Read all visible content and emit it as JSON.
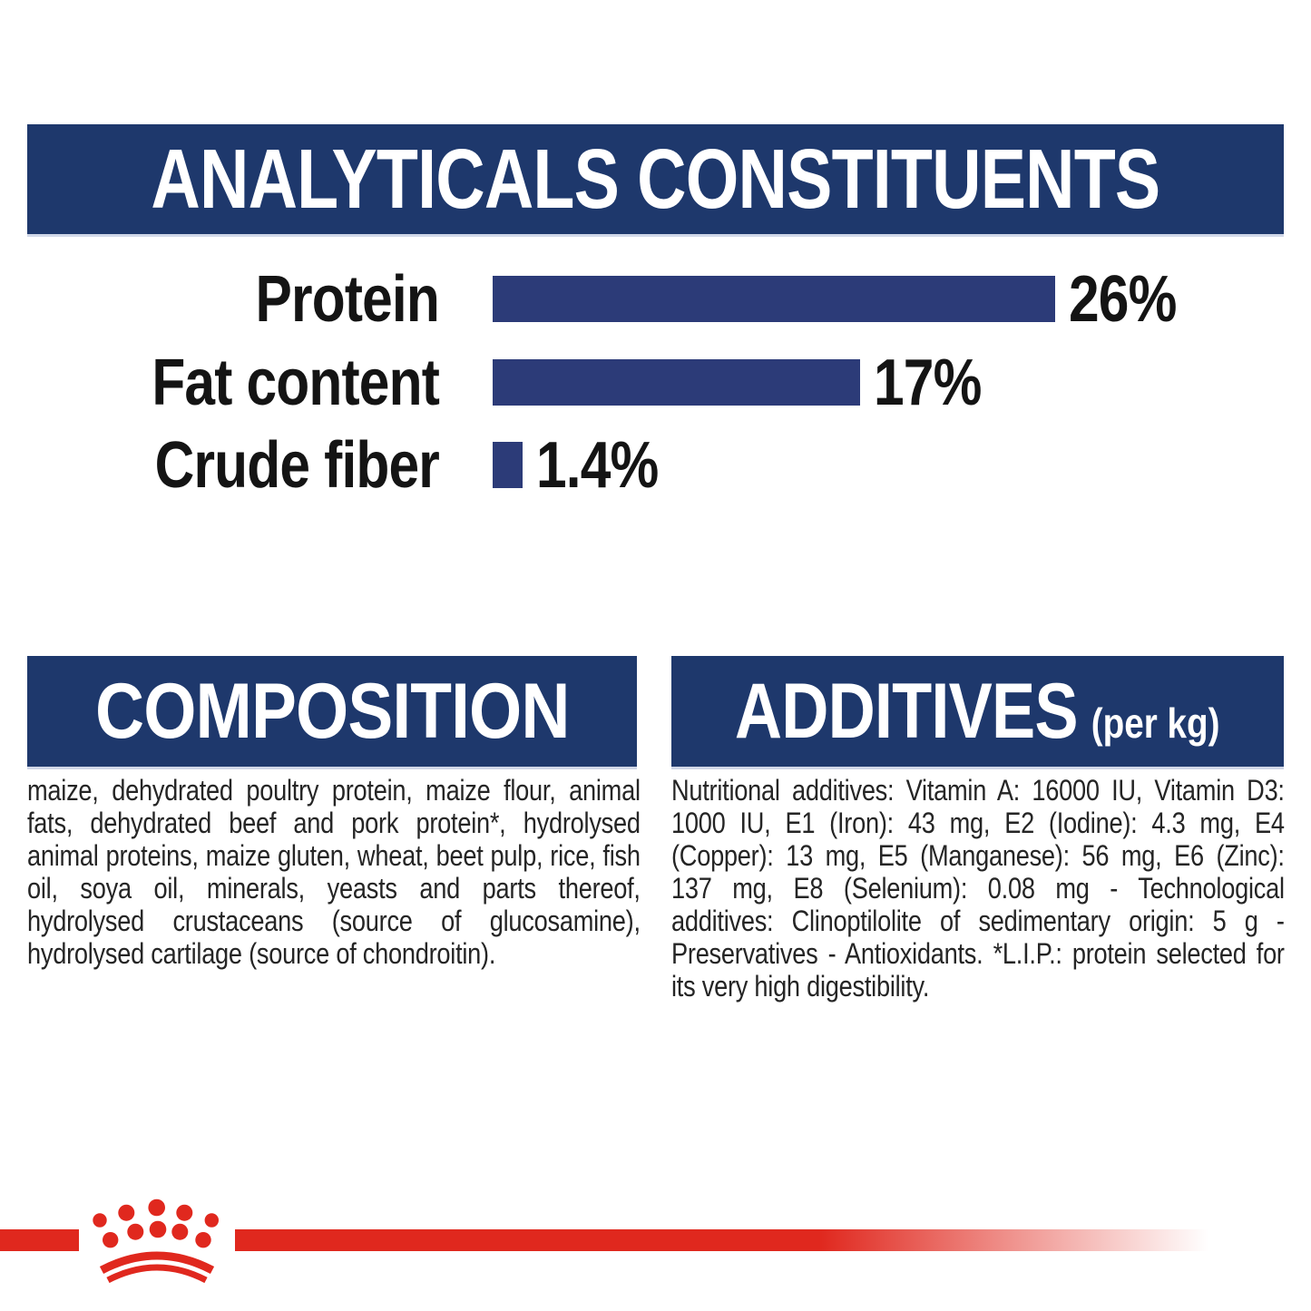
{
  "title_banner": {
    "label": "ANALYTICALS CONSTITUENTS"
  },
  "chart_data": {
    "type": "bar",
    "orientation": "horizontal",
    "title": "ANALYTICALS CONSTITUENTS",
    "categories": [
      "Protein",
      "Fat content",
      "Crude fiber"
    ],
    "values": [
      26,
      17,
      1.4
    ],
    "value_labels": [
      "26%",
      "17%",
      "1.4%"
    ],
    "unit": "percent",
    "xlim": [
      0,
      26
    ],
    "grid": false,
    "bar_color": "#2c3b78",
    "label_position": "left-of-bar",
    "value_label_position": "right-of-bar"
  },
  "composition": {
    "title": "COMPOSITION",
    "body": "maize, dehydrated poultry protein, maize flour, animal fats, dehydrated beef and pork protein*, hydrolysed animal proteins, maize gluten, wheat, beet pulp, rice, fish oil, soya oil, minerals, yeasts and parts thereof, hydrolysed crustaceans (source of glucosamine), hydrolysed cartilage (source of chondroitin)."
  },
  "additives": {
    "title": "ADDITIVES",
    "title_suffix": "(per kg)",
    "body": "Nutritional additives: Vitamin A: 16000 IU, Vitamin D3: 1000 IU, E1 (Iron): 43 mg, E2 (Iodine): 4.3 mg, E4 (Copper): 13 mg, E5 (Manganese): 56 mg, E6 (Zinc): 137 mg, E8 (Selenium): 0.08 mg - Technological additives: Clinoptilolite of sedimentary origin: 5 g - Preservatives - Antioxidants. *L.I.P.: protein selected for its very high digestibility."
  },
  "footer": {
    "logo_icon": "royal-canin-crown-paw-logo",
    "stripe_color": "#e0281e"
  },
  "colors": {
    "banner_navy": "#1e386c",
    "bar_navy": "#2c3b78",
    "brand_red": "#e0281e",
    "text_black": "#141414"
  }
}
